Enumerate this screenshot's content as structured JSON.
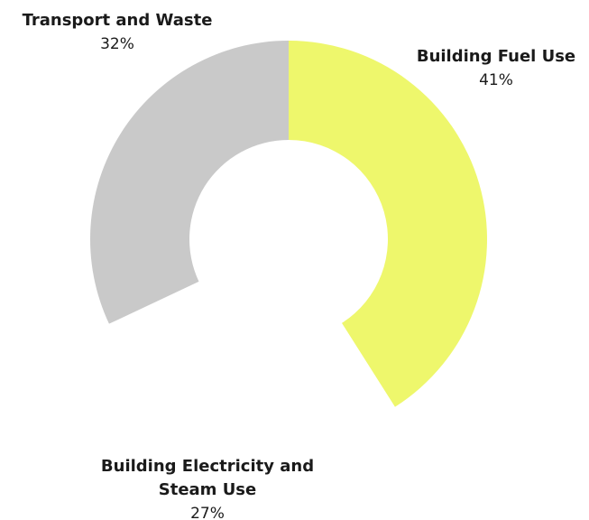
{
  "chart_data": {
    "type": "donut",
    "categories": [
      "Building Fuel Use",
      "Building Electricity and Steam Use",
      "Transport and Waste"
    ],
    "values": [
      41,
      27,
      32
    ],
    "value_labels": [
      "41%",
      "27%",
      "32%"
    ],
    "colors": [
      "#eef76c",
      "#ffffff",
      "#c9c9c9"
    ]
  }
}
